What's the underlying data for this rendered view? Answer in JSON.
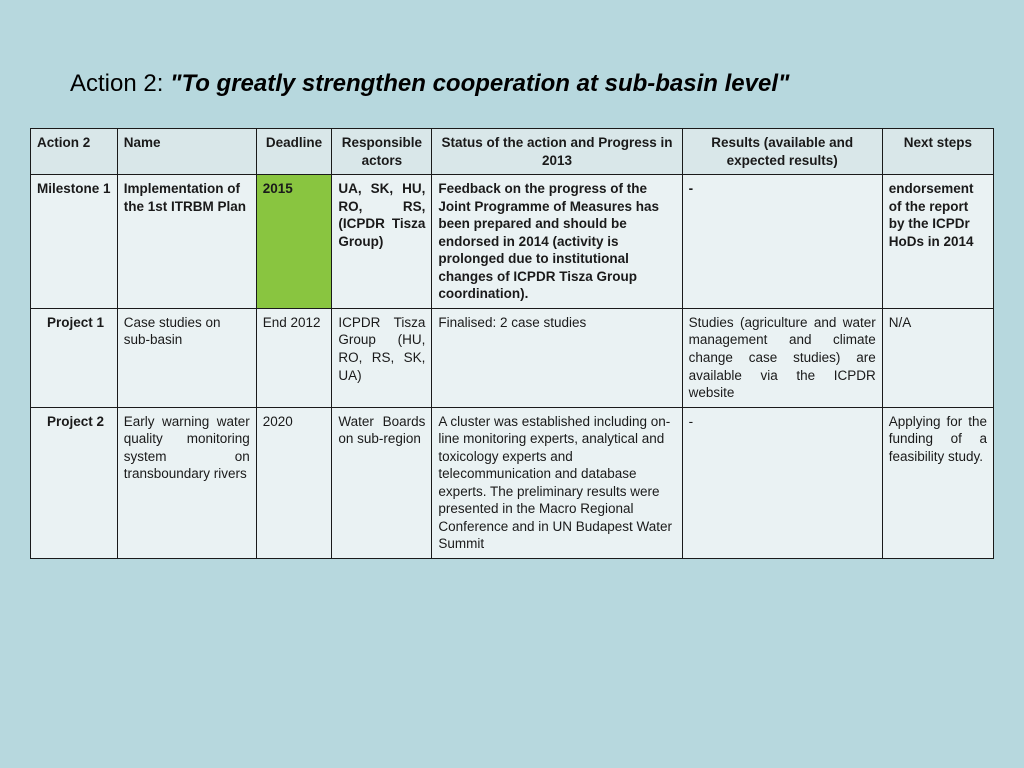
{
  "title_prefix": "Action 2: ",
  "title_main": "\"To greatly strengthen cooperation at sub-basin level\"",
  "headers": {
    "c0": "Action 2",
    "c1": "Name",
    "c2": "Deadline",
    "c3": "Responsible actors",
    "c4": "Status of the action and Progress in 2013",
    "c5": "Results (available and expected results)",
    "c6": "Next steps"
  },
  "rows": [
    {
      "label": "Milestone 1",
      "indent": false,
      "bold": true,
      "name": "Implementation of the 1st ITRBM Plan",
      "deadline": "2015",
      "deadline_highlight": true,
      "actors": "UA, SK, HU, RO, RS, (ICPDR Tisza Group)",
      "actors_justify": true,
      "status": "Feedback on the progress of the Joint Programme of Measures has been prepared and should be endorsed  in 2014 (activity is prolonged due to institutional changes of ICPDR Tisza Group coordination).",
      "results": "-",
      "results_justify": false,
      "next": "endorsement of the report by the ICPDr HoDs in 2014",
      "next_justify": false
    },
    {
      "label": "Project 1",
      "indent": true,
      "bold": false,
      "name": "Case studies on sub-basin",
      "deadline": "End 2012",
      "deadline_highlight": false,
      "actors": "ICPDR Tisza Group (HU, RO, RS, SK, UA)",
      "actors_justify": true,
      "status": "Finalised: 2 case studies",
      "results": "Studies (agriculture and water management and climate change case studies) are available via the ICPDR website",
      "results_justify": true,
      "next": "N/A",
      "next_justify": false
    },
    {
      "label": "Project 2",
      "indent": true,
      "bold": false,
      "name": "Early warning water quality monitoring system on transboundary rivers",
      "name_justify": true,
      "deadline": "2020",
      "deadline_highlight": false,
      "actors": "Water Boards on sub-region",
      "actors_justify": true,
      "status": "A cluster was established including on-line monitoring experts, analytical and toxicology experts and telecommunication and database experts. The preliminary results were presented in the Macro Regional Conference and in UN Budapest Water Summit",
      "results": "-",
      "results_justify": false,
      "next": "Applying for the funding of a feasibility study.",
      "next_justify": true
    }
  ],
  "colors": {
    "page_bg": "#b7d8de",
    "header_bg": "#d9e7e9",
    "cell_bg": "#eaf2f3",
    "highlight_bg": "#89c540",
    "border": "#1a1a1a"
  }
}
